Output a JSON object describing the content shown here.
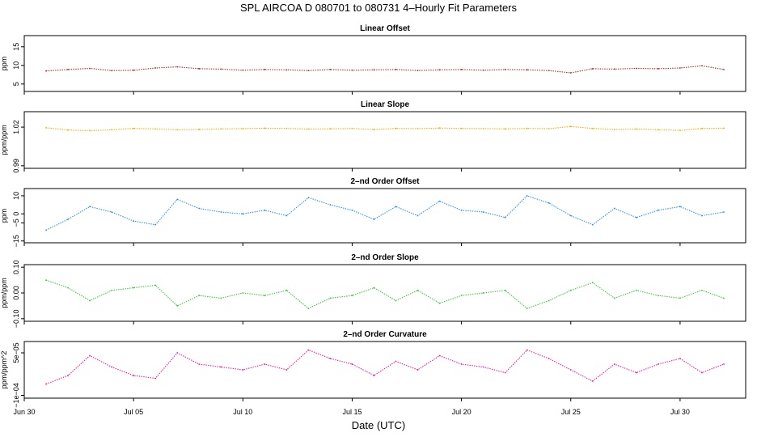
{
  "title": "SPL   AIRCOA D   080701 to 080731   4–Hourly Fit Parameters",
  "xlabel": "Date (UTC)",
  "x_tick_labels": [
    "Jun 30",
    "Jul 05",
    "Jul 10",
    "Jul 15",
    "Jul 20",
    "Jul 25",
    "Jul 30"
  ],
  "chart_data": [
    {
      "type": "line",
      "title": "Linear Offset",
      "ylabel": "ppm",
      "x_range": [
        "2008-06-30",
        "2008-08-02"
      ],
      "ylim": [
        3,
        18
      ],
      "y_ticks": [
        5,
        10,
        15
      ],
      "y_tick_labels": [
        "5",
        "10",
        "15"
      ],
      "color": "#b22222",
      "series": [
        {
          "x": [
            "2008-07-01",
            "2008-07-02",
            "2008-07-03",
            "2008-07-04",
            "2008-07-05",
            "2008-07-06",
            "2008-07-07",
            "2008-07-08",
            "2008-07-09",
            "2008-07-10",
            "2008-07-11",
            "2008-07-12",
            "2008-07-13",
            "2008-07-14",
            "2008-07-15",
            "2008-07-16",
            "2008-07-17",
            "2008-07-18",
            "2008-07-19",
            "2008-07-20",
            "2008-07-21",
            "2008-07-22",
            "2008-07-23",
            "2008-07-24",
            "2008-07-25",
            "2008-07-26",
            "2008-07-27",
            "2008-07-28",
            "2008-07-29",
            "2008-07-30",
            "2008-07-31",
            "2008-08-01"
          ],
          "y": [
            8.5,
            8.9,
            9.2,
            8.6,
            8.7,
            9.3,
            9.6,
            9.1,
            9.0,
            8.7,
            8.9,
            8.8,
            8.6,
            8.9,
            8.7,
            8.8,
            8.9,
            8.6,
            8.8,
            8.9,
            8.7,
            8.9,
            8.8,
            8.6,
            8.0,
            9.1,
            9.0,
            9.2,
            9.1,
            9.3,
            9.9,
            8.9
          ]
        }
      ]
    },
    {
      "type": "line",
      "title": "Linear Slope",
      "ylabel": "ppm/ppm",
      "x_range": [
        "2008-06-30",
        "2008-08-02"
      ],
      "ylim": [
        0.988,
        1.032
      ],
      "y_ticks": [
        0.99,
        1.02
      ],
      "y_tick_labels": [
        "0.99",
        "1.02"
      ],
      "color": "#ffa500",
      "series": [
        {
          "x": [
            "2008-07-01",
            "2008-07-02",
            "2008-07-03",
            "2008-07-04",
            "2008-07-05",
            "2008-07-06",
            "2008-07-07",
            "2008-07-08",
            "2008-07-09",
            "2008-07-10",
            "2008-07-11",
            "2008-07-12",
            "2008-07-13",
            "2008-07-14",
            "2008-07-15",
            "2008-07-16",
            "2008-07-17",
            "2008-07-18",
            "2008-07-19",
            "2008-07-20",
            "2008-07-21",
            "2008-07-22",
            "2008-07-23",
            "2008-07-24",
            "2008-07-25",
            "2008-07-26",
            "2008-07-27",
            "2008-07-28",
            "2008-07-29",
            "2008-07-30",
            "2008-07-31",
            "2008-08-01"
          ],
          "y": [
            1.0195,
            1.0178,
            1.0172,
            1.018,
            1.019,
            1.0186,
            1.018,
            1.0182,
            1.0186,
            1.0188,
            1.0192,
            1.019,
            1.0185,
            1.0187,
            1.0189,
            1.0182,
            1.019,
            1.0188,
            1.0193,
            1.019,
            1.0188,
            1.0186,
            1.019,
            1.0188,
            1.0205,
            1.019,
            1.0182,
            1.0185,
            1.018,
            1.0175,
            1.019,
            1.0192
          ]
        }
      ]
    },
    {
      "type": "line",
      "title": "2–nd Order Offset",
      "ylabel": "ppm",
      "x_range": [
        "2008-06-30",
        "2008-08-02"
      ],
      "ylim": [
        -16,
        14
      ],
      "y_ticks": [
        -15,
        -5,
        0,
        10
      ],
      "y_tick_labels": [
        "−15",
        "−5",
        "0",
        "10"
      ],
      "color": "#1e90ff",
      "series": [
        {
          "x": [
            "2008-07-01",
            "2008-07-02",
            "2008-07-03",
            "2008-07-04",
            "2008-07-05",
            "2008-07-06",
            "2008-07-07",
            "2008-07-08",
            "2008-07-09",
            "2008-07-10",
            "2008-07-11",
            "2008-07-12",
            "2008-07-13",
            "2008-07-14",
            "2008-07-15",
            "2008-07-16",
            "2008-07-17",
            "2008-07-18",
            "2008-07-19",
            "2008-07-20",
            "2008-07-21",
            "2008-07-22",
            "2008-07-23",
            "2008-07-24",
            "2008-07-25",
            "2008-07-26",
            "2008-07-27",
            "2008-07-28",
            "2008-07-29",
            "2008-07-30",
            "2008-07-31",
            "2008-08-01"
          ],
          "y": [
            -9,
            -3,
            4,
            1,
            -4,
            -6,
            8,
            3,
            1,
            0,
            2,
            -1,
            9,
            5,
            2,
            -3,
            4,
            -1,
            7,
            2,
            1,
            -2,
            10,
            6,
            -1,
            -6,
            3,
            -2,
            2,
            4,
            -1,
            1
          ]
        }
      ]
    },
    {
      "type": "line",
      "title": "2–nd Order Slope",
      "ylabel": "ppm/ppm",
      "x_range": [
        "2008-06-30",
        "2008-08-02"
      ],
      "ylim": [
        -0.11,
        0.11
      ],
      "y_ticks": [
        -0.1,
        0.0,
        0.1
      ],
      "y_tick_labels": [
        "−0.10",
        "0.00",
        "0.10"
      ],
      "color": "#32cd32",
      "series": [
        {
          "x": [
            "2008-07-01",
            "2008-07-02",
            "2008-07-03",
            "2008-07-04",
            "2008-07-05",
            "2008-07-06",
            "2008-07-07",
            "2008-07-08",
            "2008-07-09",
            "2008-07-10",
            "2008-07-11",
            "2008-07-12",
            "2008-07-13",
            "2008-07-14",
            "2008-07-15",
            "2008-07-16",
            "2008-07-17",
            "2008-07-18",
            "2008-07-19",
            "2008-07-20",
            "2008-07-21",
            "2008-07-22",
            "2008-07-23",
            "2008-07-24",
            "2008-07-25",
            "2008-07-26",
            "2008-07-27",
            "2008-07-28",
            "2008-07-29",
            "2008-07-30",
            "2008-07-31",
            "2008-08-01"
          ],
          "y": [
            0.05,
            0.02,
            -0.03,
            0.01,
            0.02,
            0.03,
            -0.05,
            -0.01,
            -0.02,
            0.0,
            -0.01,
            0.01,
            -0.06,
            -0.02,
            -0.01,
            0.02,
            -0.03,
            0.01,
            -0.04,
            -0.01,
            0.0,
            0.01,
            -0.06,
            -0.03,
            0.01,
            0.04,
            -0.02,
            0.01,
            -0.01,
            -0.02,
            0.01,
            -0.02
          ]
        }
      ]
    },
    {
      "type": "line",
      "title": "2–nd Order Curvature",
      "ylabel": "ppm/ppm^2",
      "x_range": [
        "2008-06-30",
        "2008-08-02"
      ],
      "ylim": [
        -0.00011,
        9e-05
      ],
      "y_ticks": [
        -0.0001,
        5e-05
      ],
      "y_tick_labels": [
        "−1e−04",
        "5e−05"
      ],
      "color": "#ff1493",
      "series": [
        {
          "x": [
            "2008-07-01",
            "2008-07-02",
            "2008-07-03",
            "2008-07-04",
            "2008-07-05",
            "2008-07-06",
            "2008-07-07",
            "2008-07-08",
            "2008-07-09",
            "2008-07-10",
            "2008-07-11",
            "2008-07-12",
            "2008-07-13",
            "2008-07-14",
            "2008-07-15",
            "2008-07-16",
            "2008-07-17",
            "2008-07-18",
            "2008-07-19",
            "2008-07-20",
            "2008-07-21",
            "2008-07-22",
            "2008-07-23",
            "2008-07-24",
            "2008-07-25",
            "2008-07-26",
            "2008-07-27",
            "2008-07-28",
            "2008-07-29",
            "2008-07-30",
            "2008-07-31",
            "2008-08-01"
          ],
          "y": [
            -6e-05,
            -3e-05,
            4e-05,
            0.0,
            -3e-05,
            -4e-05,
            5e-05,
            1e-05,
            0.0,
            -1e-05,
            1e-05,
            -1e-05,
            6e-05,
            3e-05,
            1e-05,
            -3e-05,
            2e-05,
            -1e-05,
            4e-05,
            1e-05,
            0.0,
            -2e-05,
            6e-05,
            3e-05,
            -1e-05,
            -5e-05,
            1e-05,
            -2e-05,
            1e-05,
            3e-05,
            -2e-05,
            1e-05
          ]
        }
      ]
    }
  ]
}
